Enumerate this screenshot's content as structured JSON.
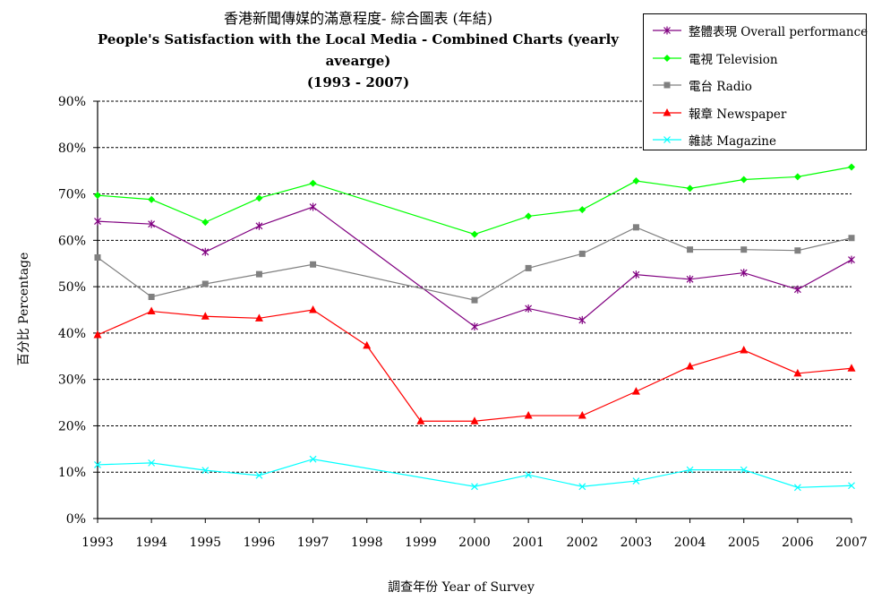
{
  "chart_data": {
    "type": "line",
    "title_zh": "香港新聞傳媒的滿意程度- 綜合圖表 (年結)",
    "title": "People's Satisfaction with the Local Media - Combined Charts (yearly avearge)",
    "subtitle": "(1993 - 2007)",
    "xlabel": "調查年份 Year of Survey",
    "ylabel": "百分比 Percentage",
    "ylim": [
      0,
      90
    ],
    "y_ticks": [
      "0%",
      "10%",
      "20%",
      "30%",
      "40%",
      "50%",
      "60%",
      "70%",
      "80%",
      "90%"
    ],
    "x": [
      "1993",
      "1994",
      "1995",
      "1996",
      "1997",
      "1998",
      "1999",
      "2000",
      "2001",
      "2002",
      "2003",
      "2004",
      "2005",
      "2006",
      "2007"
    ],
    "grid": "horizontal dashed",
    "legend_position": "top-right",
    "series": [
      {
        "name": "整體表現 Overall performance",
        "color": "#800080",
        "marker": "star",
        "values": [
          64.1,
          63.5,
          57.5,
          63.1,
          67.2,
          null,
          null,
          41.4,
          45.3,
          42.8,
          52.6,
          51.6,
          53.0,
          49.4,
          55.8
        ]
      },
      {
        "name": "電視 Television",
        "color": "#00ff00",
        "marker": "diamond",
        "values": [
          69.7,
          68.8,
          63.9,
          69.1,
          72.3,
          null,
          null,
          61.3,
          65.2,
          66.6,
          72.8,
          71.2,
          73.1,
          73.7,
          75.8
        ]
      },
      {
        "name": "電台 Radio",
        "color": "#808080",
        "marker": "square",
        "values": [
          56.3,
          47.8,
          50.6,
          52.7,
          54.8,
          null,
          null,
          47.1,
          54.0,
          57.1,
          62.8,
          58.0,
          58.0,
          57.8,
          60.5
        ]
      },
      {
        "name": "報章 Newspaper",
        "color": "#ff0000",
        "marker": "triangle",
        "values": [
          39.6,
          44.7,
          43.6,
          43.2,
          45.0,
          37.3,
          21.0,
          21.0,
          22.2,
          22.2,
          27.4,
          32.8,
          36.3,
          31.3,
          32.4
        ]
      },
      {
        "name": "雜誌 Magazine",
        "color": "#00ffff",
        "marker": "x",
        "values": [
          11.6,
          12.0,
          10.4,
          9.3,
          12.8,
          null,
          null,
          6.9,
          9.4,
          6.9,
          8.1,
          10.5,
          10.5,
          6.7,
          7.1
        ]
      }
    ]
  }
}
